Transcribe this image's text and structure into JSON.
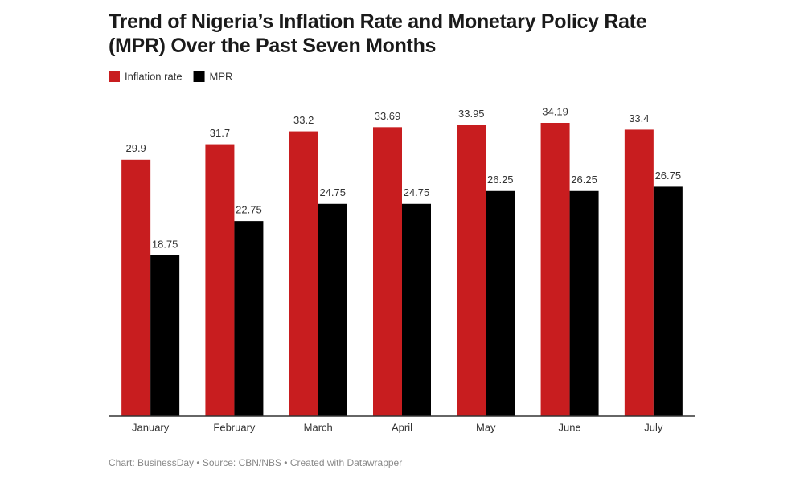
{
  "chart_data": {
    "type": "bar",
    "title": "Trend of Nigeria’s Inflation Rate and Monetary Policy Rate (MPR) Over the Past Seven Months",
    "categories": [
      "January",
      "February",
      "March",
      "April",
      "May",
      "June",
      "July"
    ],
    "series": [
      {
        "name": "Inflation rate",
        "color": "#c81d1f",
        "values": [
          29.9,
          31.7,
          33.2,
          33.69,
          33.95,
          34.19,
          33.4
        ]
      },
      {
        "name": "MPR",
        "color": "#000000",
        "values": [
          18.75,
          22.75,
          24.75,
          24.75,
          26.25,
          26.25,
          26.75
        ]
      }
    ],
    "source": "Chart: BusinessDay • Source: CBN/NBS • Created with Datawrapper"
  }
}
